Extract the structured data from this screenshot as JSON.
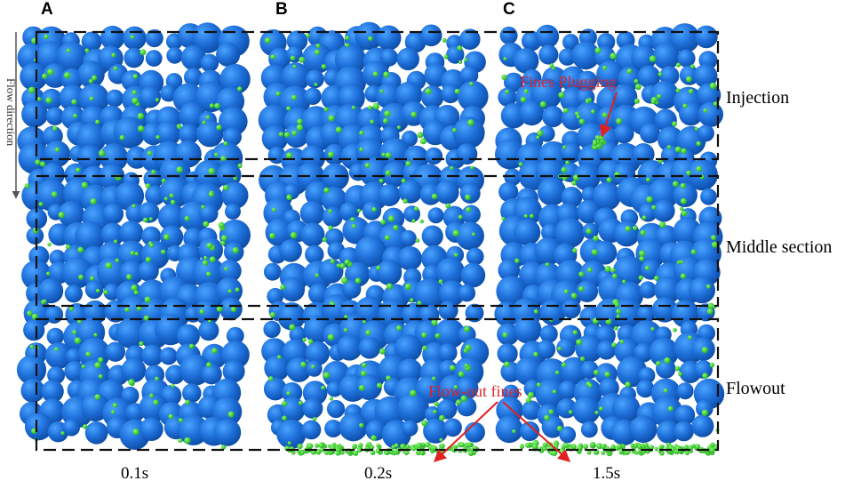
{
  "panels": [
    {
      "letter": "A",
      "time": "0.1s"
    },
    {
      "letter": "B",
      "time": "0.2s"
    },
    {
      "letter": "C",
      "time": "1.5s"
    }
  ],
  "sections": [
    "Injection",
    "Middle section",
    "Flowout"
  ],
  "flow_direction": "Flow direction",
  "annotations": {
    "plugging": "Fines Plugging",
    "flowout": "Flow-out fines"
  },
  "colors": {
    "coarse": "#1e6fd9",
    "fines": "#2bd12b",
    "frame": "#111111",
    "arrow": "#e12020"
  }
}
